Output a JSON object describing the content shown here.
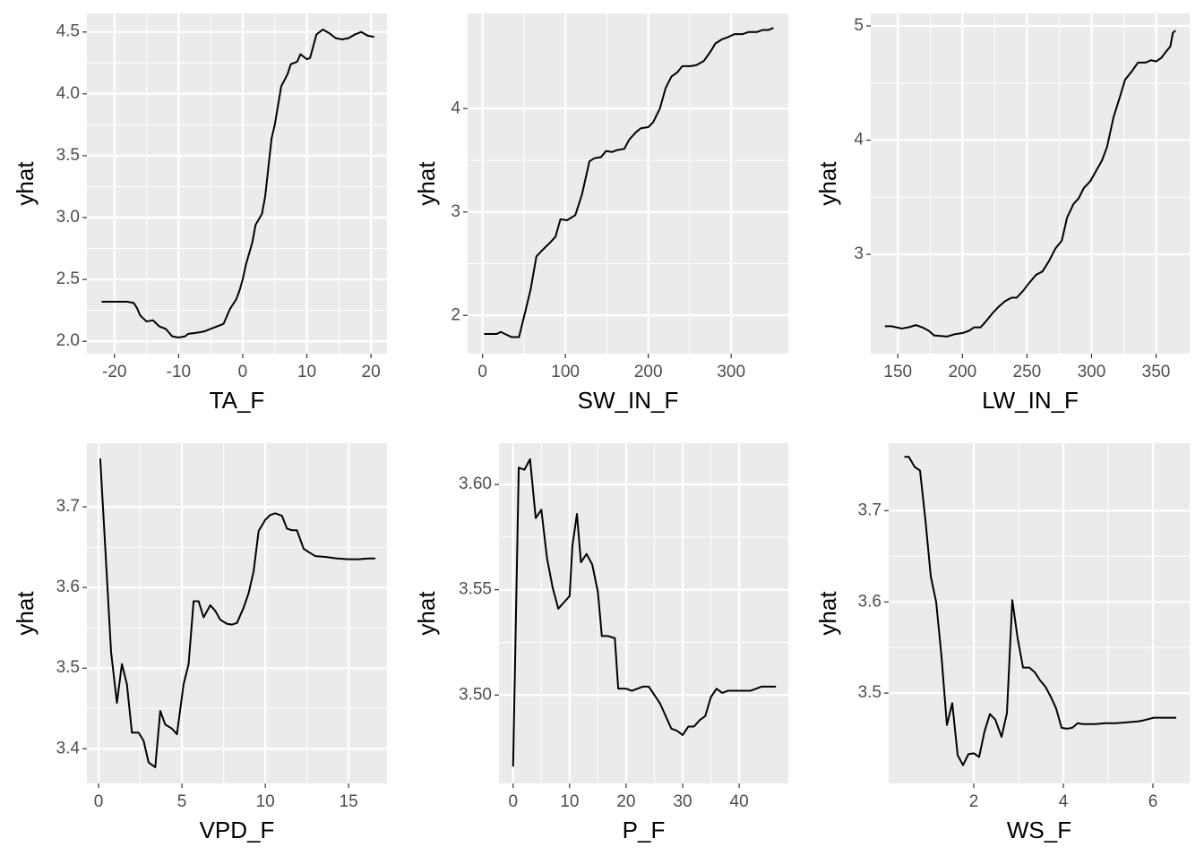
{
  "chart_data": [
    {
      "type": "line",
      "x_label": "TA_F",
      "y_label": "yhat",
      "color": "#000000",
      "grid": true,
      "x": [
        -22,
        -20,
        -18,
        -17,
        -16.5,
        -16,
        -15,
        -14,
        -13,
        -12,
        -11,
        -10,
        -9,
        -8.5,
        -7,
        -6,
        -5,
        -4,
        -3,
        -2,
        -1,
        -0.5,
        0,
        0.5,
        1.5,
        2,
        3,
        3.5,
        4.5,
        5,
        6,
        7,
        7.5,
        8.5,
        9,
        10,
        10.5,
        11.5,
        12.5,
        13.5,
        14.5,
        15.5,
        16.5,
        17.5,
        18.5,
        19.5,
        20.5
      ],
      "values": [
        2.32,
        2.32,
        2.32,
        2.31,
        2.27,
        2.21,
        2.16,
        2.17,
        2.12,
        2.1,
        2.04,
        2.03,
        2.04,
        2.06,
        2.07,
        2.08,
        2.1,
        2.12,
        2.14,
        2.26,
        2.34,
        2.41,
        2.5,
        2.62,
        2.8,
        2.94,
        3.03,
        3.17,
        3.64,
        3.75,
        4.06,
        4.16,
        4.24,
        4.26,
        4.32,
        4.28,
        4.29,
        4.48,
        4.52,
        4.49,
        4.45,
        4.44,
        4.45,
        4.48,
        4.5,
        4.47,
        4.46
      ],
      "xlim": [
        -24.3,
        22.5
      ],
      "ylim": [
        1.9,
        4.65
      ],
      "xticks": [
        -20,
        -10,
        0,
        10,
        20
      ],
      "yticks": [
        {
          "value": 2,
          "label": "2.0"
        },
        2.5,
        {
          "value": 3,
          "label": "3.0"
        },
        3.5,
        {
          "value": 4,
          "label": "4.0"
        },
        4.5
      ]
    },
    {
      "type": "line",
      "x_label": "SW_IN_F",
      "y_label": "yhat",
      "color": "#000000",
      "grid": true,
      "x": [
        2,
        17,
        22,
        35,
        44,
        52,
        58,
        65,
        72,
        81,
        88,
        94,
        102,
        112,
        120,
        129,
        135,
        143,
        149,
        156,
        163,
        171,
        177,
        185,
        191,
        200,
        206,
        214,
        221,
        228,
        235,
        241,
        251,
        258,
        267,
        275,
        281,
        289,
        296,
        304,
        314,
        321,
        331,
        338,
        345,
        351
      ],
      "values": [
        1.82,
        1.82,
        1.84,
        1.79,
        1.79,
        2.05,
        2.25,
        2.57,
        2.63,
        2.7,
        2.76,
        2.93,
        2.92,
        2.97,
        3.17,
        3.49,
        3.52,
        3.53,
        3.59,
        3.58,
        3.6,
        3.61,
        3.7,
        3.77,
        3.81,
        3.82,
        3.87,
        4.0,
        4.2,
        4.31,
        4.35,
        4.41,
        4.41,
        4.42,
        4.46,
        4.55,
        4.63,
        4.67,
        4.69,
        4.72,
        4.72,
        4.74,
        4.74,
        4.76,
        4.76,
        4.78
      ],
      "xlim": [
        -18,
        369
      ],
      "ylim": [
        1.63,
        4.92
      ],
      "xticks": [
        0,
        100,
        200,
        300
      ],
      "yticks": [
        2,
        3,
        4
      ]
    },
    {
      "type": "line",
      "x_label": "LW_IN_F",
      "y_label": "yhat",
      "color": "#000000",
      "grid": true,
      "x": [
        140,
        145,
        153,
        158,
        164,
        169,
        174,
        178,
        188,
        194,
        200,
        205,
        209,
        214,
        218,
        223,
        228,
        233,
        238,
        242,
        247,
        251,
        257,
        262,
        267,
        272,
        277,
        281,
        286,
        290,
        294,
        299,
        303,
        308,
        312,
        317,
        322,
        326,
        331,
        336,
        342,
        346,
        350,
        354,
        358,
        361,
        363,
        365
      ],
      "values": [
        2.37,
        2.37,
        2.35,
        2.36,
        2.38,
        2.36,
        2.33,
        2.29,
        2.28,
        2.3,
        2.31,
        2.33,
        2.36,
        2.36,
        2.41,
        2.48,
        2.54,
        2.59,
        2.62,
        2.62,
        2.68,
        2.74,
        2.82,
        2.85,
        2.94,
        3.05,
        3.12,
        3.32,
        3.44,
        3.49,
        3.58,
        3.64,
        3.72,
        3.82,
        3.94,
        4.2,
        4.38,
        4.53,
        4.6,
        4.68,
        4.68,
        4.7,
        4.69,
        4.72,
        4.78,
        4.82,
        4.94,
        4.96
      ],
      "xlim": [
        129,
        376
      ],
      "ylim": [
        2.13,
        5.11
      ],
      "xticks": [
        150,
        200,
        250,
        300,
        350
      ],
      "yticks": [
        3,
        4,
        5
      ]
    },
    {
      "type": "line",
      "x_label": "VPD_F",
      "y_label": "yhat",
      "color": "#000000",
      "grid": true,
      "x": [
        0.1,
        0.4,
        0.75,
        1.1,
        1.4,
        1.7,
        2.0,
        2.4,
        2.7,
        3.0,
        3.4,
        3.7,
        4.0,
        4.4,
        4.7,
        5.1,
        5.4,
        5.7,
        6.0,
        6.3,
        6.7,
        7.0,
        7.3,
        7.7,
        8.0,
        8.3,
        8.7,
        9.0,
        9.3,
        9.6,
        10.0,
        10.3,
        10.6,
        11.0,
        11.3,
        11.6,
        11.9,
        12.3,
        12.6,
        13.0,
        13.6,
        14.3,
        15.0,
        15.6,
        16.2,
        16.6
      ],
      "values": [
        3.76,
        3.65,
        3.52,
        3.457,
        3.505,
        3.48,
        3.42,
        3.42,
        3.41,
        3.383,
        3.377,
        3.447,
        3.43,
        3.425,
        3.418,
        3.48,
        3.505,
        3.583,
        3.583,
        3.563,
        3.578,
        3.571,
        3.56,
        3.555,
        3.554,
        3.556,
        3.575,
        3.593,
        3.62,
        3.67,
        3.684,
        3.69,
        3.692,
        3.689,
        3.673,
        3.671,
        3.671,
        3.648,
        3.644,
        3.639,
        3.638,
        3.636,
        3.635,
        3.635,
        3.636,
        3.636
      ],
      "xlim": [
        -0.7,
        17.3
      ],
      "ylim": [
        3.357,
        3.779
      ],
      "xticks": [
        0,
        5,
        10,
        15
      ],
      "yticks": [
        3.4,
        3.5,
        3.6,
        3.7
      ]
    },
    {
      "type": "line",
      "x_label": "P_F",
      "y_label": "yhat",
      "color": "#000000",
      "grid": true,
      "x": [
        0,
        1,
        2,
        3,
        4,
        5,
        6,
        7,
        8,
        9,
        10,
        10.5,
        11.3,
        12,
        13,
        14,
        15,
        15.7,
        16.8,
        18,
        18.6,
        20,
        21,
        22,
        23,
        24,
        25,
        26,
        27,
        28,
        29,
        30,
        31,
        32,
        33,
        34,
        35,
        36,
        37,
        38,
        42,
        43,
        44,
        46.5
      ],
      "values": [
        3.466,
        3.608,
        3.607,
        3.612,
        3.584,
        3.588,
        3.565,
        3.551,
        3.541,
        3.544,
        3.547,
        3.571,
        3.586,
        3.563,
        3.567,
        3.562,
        3.549,
        3.528,
        3.528,
        3.527,
        3.503,
        3.503,
        3.502,
        3.503,
        3.504,
        3.504,
        3.5,
        3.496,
        3.49,
        3.484,
        3.483,
        3.481,
        3.485,
        3.485,
        3.488,
        3.49,
        3.499,
        3.503,
        3.501,
        3.502,
        3.502,
        3.503,
        3.504,
        3.504
      ],
      "xlim": [
        -2.5,
        48.7
      ],
      "ylim": [
        3.458,
        3.6196
      ],
      "xticks": [
        0,
        10,
        20,
        30,
        40
      ],
      "yticks": [
        {
          "value": 3.5,
          "label": "3.50"
        },
        3.55,
        {
          "value": 3.6,
          "label": "3.60"
        }
      ]
    },
    {
      "type": "line",
      "x_label": "WS_F",
      "y_label": "yhat",
      "color": "#000000",
      "grid": true,
      "x": [
        0.45,
        0.55,
        0.68,
        0.8,
        0.92,
        1.04,
        1.16,
        1.28,
        1.4,
        1.52,
        1.64,
        1.76,
        1.88,
        2.0,
        2.12,
        2.24,
        2.36,
        2.48,
        2.62,
        2.74,
        2.86,
        2.98,
        3.1,
        3.24,
        3.36,
        3.48,
        3.6,
        3.72,
        3.84,
        3.96,
        4.08,
        4.2,
        4.32,
        4.44,
        4.7,
        4.94,
        5.18,
        5.42,
        5.66,
        5.78,
        6.02,
        6.52
      ],
      "values": [
        3.759,
        3.759,
        3.748,
        3.744,
        3.69,
        3.628,
        3.6,
        3.54,
        3.465,
        3.489,
        3.432,
        3.421,
        3.433,
        3.434,
        3.43,
        3.458,
        3.477,
        3.471,
        3.452,
        3.478,
        3.602,
        3.56,
        3.528,
        3.528,
        3.523,
        3.514,
        3.507,
        3.496,
        3.483,
        3.462,
        3.461,
        3.462,
        3.467,
        3.466,
        3.466,
        3.467,
        3.467,
        3.468,
        3.469,
        3.47,
        3.473,
        3.473
      ],
      "xlim": [
        0.1,
        6.82
      ],
      "ylim": [
        3.401,
        3.774
      ],
      "xticks": [
        2,
        4,
        6
      ],
      "yticks": [
        3.5,
        3.6,
        3.7
      ]
    }
  ]
}
